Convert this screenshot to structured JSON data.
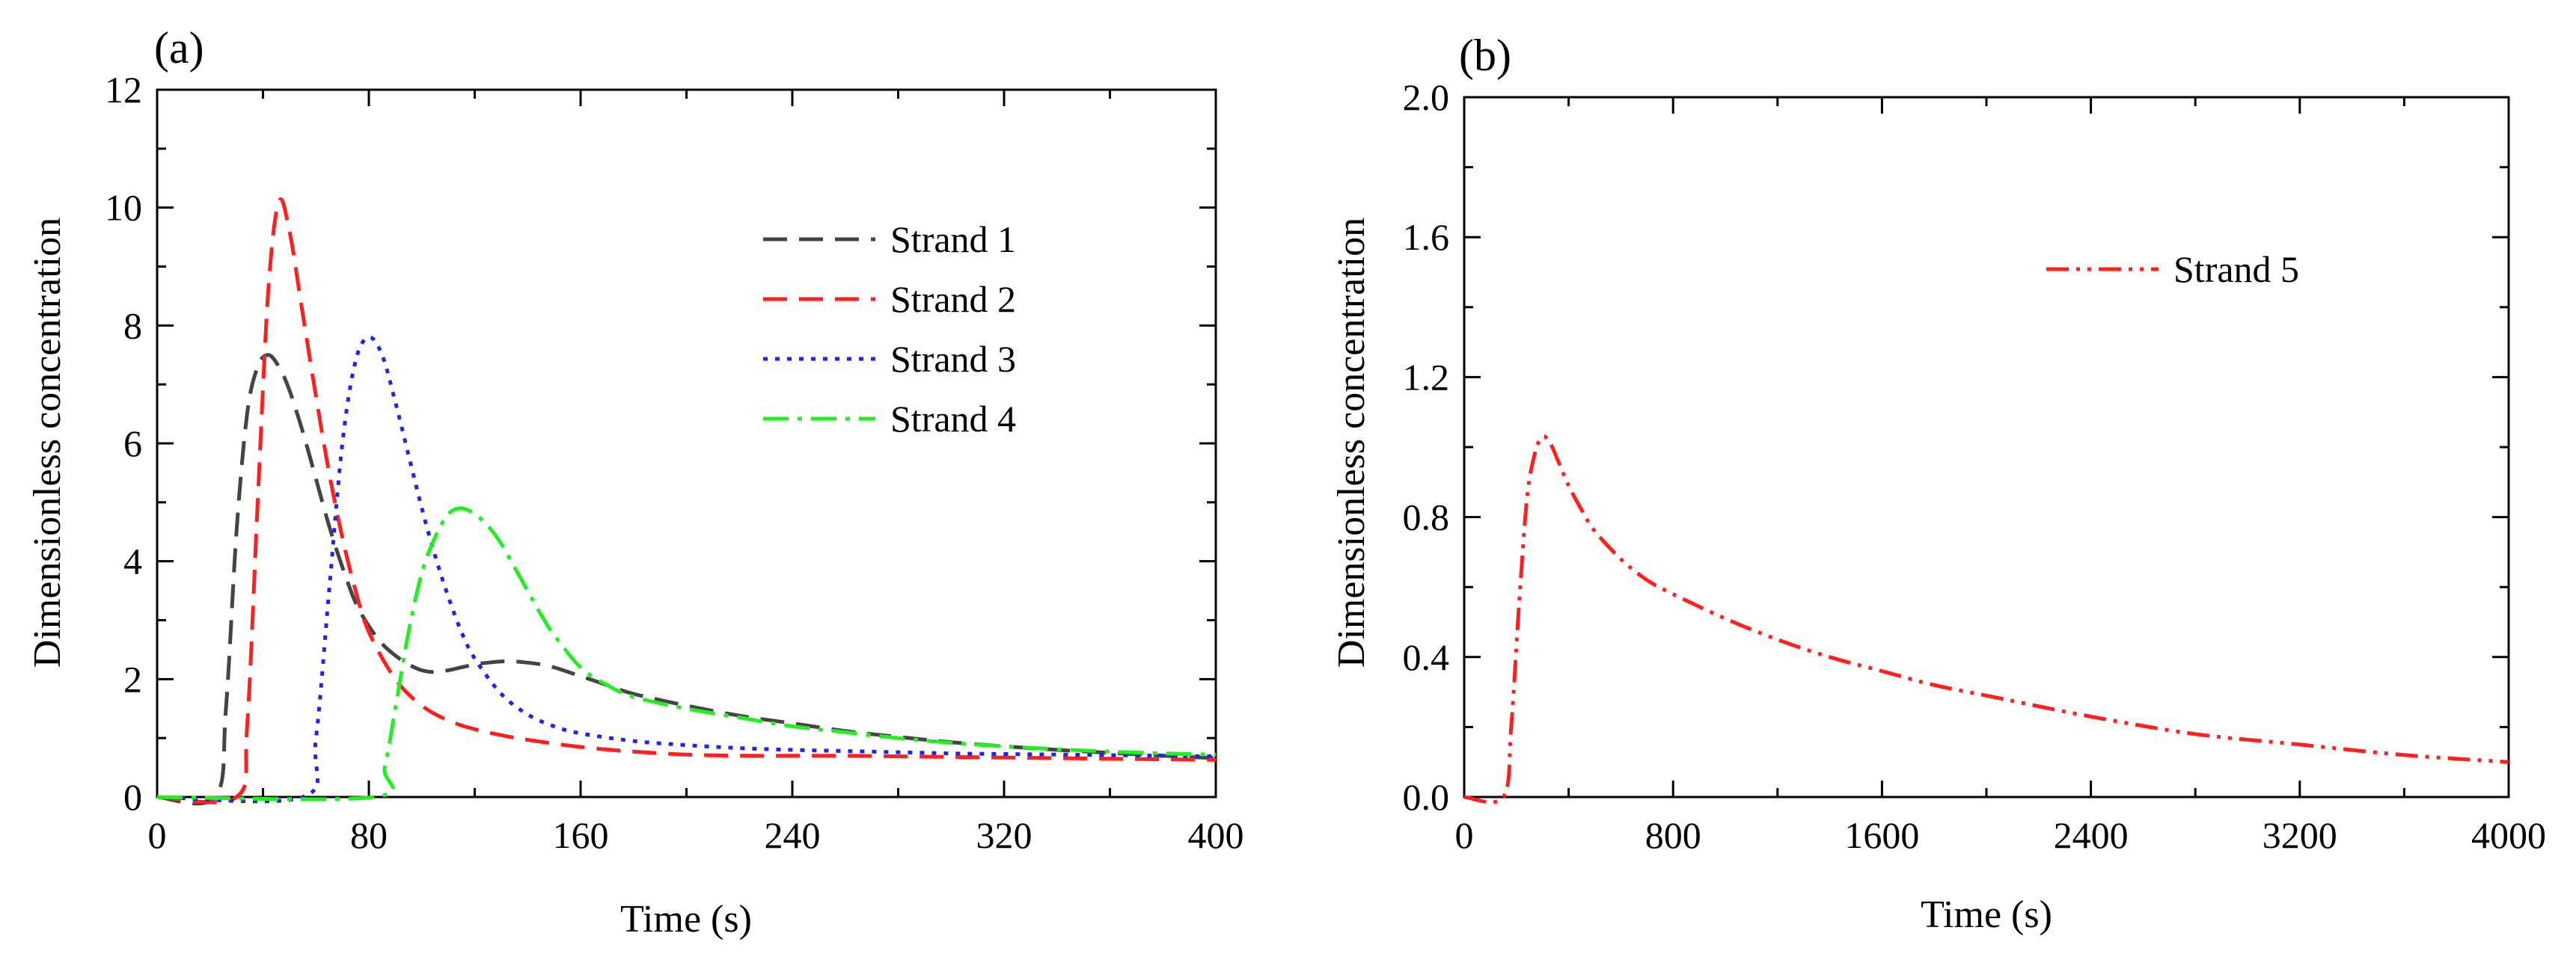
{
  "chart_data": [
    {
      "panel_label": "(a)",
      "type": "line",
      "xlabel": "Time (s)",
      "ylabel": "Dimensionless concentration",
      "xlim": [
        0,
        400
      ],
      "ylim": [
        0,
        12
      ],
      "xticks": [
        0,
        80,
        160,
        240,
        320,
        400
      ],
      "yticks": [
        0,
        2,
        4,
        6,
        8,
        10,
        12
      ],
      "xtick_labels": [
        "0",
        "80",
        "160",
        "240",
        "320",
        "400"
      ],
      "ytick_labels": [
        "0",
        "2",
        "4",
        "6",
        "8",
        "10",
        "12"
      ],
      "legend_position": "top-right",
      "series": [
        {
          "name": "Strand 1",
          "color": "#444444",
          "dash": "dashed",
          "x": [
            0,
            22,
            26,
            30,
            34,
            38,
            42,
            46,
            50,
            55,
            60,
            65,
            70,
            75,
            80,
            85,
            90,
            95,
            100,
            105,
            110,
            115,
            120,
            125,
            130,
            135,
            140,
            145,
            150,
            160,
            170,
            180,
            200,
            220,
            240,
            260,
            280,
            300,
            320,
            340,
            360,
            380,
            400
          ],
          "y": [
            0,
            0,
            1.5,
            4.5,
            6.5,
            7.3,
            7.5,
            7.3,
            6.9,
            6.2,
            5.4,
            4.6,
            3.9,
            3.3,
            2.9,
            2.6,
            2.4,
            2.25,
            2.15,
            2.12,
            2.15,
            2.2,
            2.25,
            2.28,
            2.3,
            2.3,
            2.28,
            2.25,
            2.2,
            2.05,
            1.9,
            1.75,
            1.55,
            1.38,
            1.25,
            1.12,
            1.02,
            0.93,
            0.86,
            0.8,
            0.75,
            0.7,
            0.66
          ]
        },
        {
          "name": "Strand 2",
          "color": "#ff1f1f",
          "dash": "dashed",
          "x": [
            0,
            30,
            34,
            38,
            42,
            46,
            50,
            55,
            60,
            65,
            70,
            75,
            80,
            90,
            100,
            110,
            120,
            130,
            140,
            160,
            180,
            200,
            220,
            240,
            260,
            280,
            300,
            320,
            340,
            360,
            380,
            400
          ],
          "y": [
            0,
            0,
            1.2,
            5.0,
            8.6,
            10.1,
            9.6,
            8.2,
            6.8,
            5.5,
            4.4,
            3.5,
            2.8,
            2.0,
            1.55,
            1.3,
            1.15,
            1.05,
            0.97,
            0.85,
            0.77,
            0.72,
            0.7,
            0.7,
            0.7,
            0.69,
            0.68,
            0.67,
            0.66,
            0.65,
            0.64,
            0.63
          ]
        },
        {
          "name": "Strand 3",
          "color": "#2222ee",
          "dash": "dotted",
          "x": [
            0,
            55,
            60,
            65,
            70,
            75,
            80,
            85,
            90,
            95,
            100,
            105,
            110,
            115,
            120,
            130,
            140,
            150,
            160,
            180,
            200,
            220,
            240,
            260,
            280,
            300,
            320,
            340,
            360,
            380,
            400
          ],
          "y": [
            0,
            0,
            1.0,
            3.5,
            6.0,
            7.4,
            7.8,
            7.5,
            6.7,
            5.8,
            4.9,
            4.1,
            3.4,
            2.8,
            2.35,
            1.75,
            1.4,
            1.2,
            1.08,
            0.95,
            0.88,
            0.83,
            0.8,
            0.78,
            0.76,
            0.74,
            0.73,
            0.72,
            0.71,
            0.7,
            0.69
          ]
        },
        {
          "name": "Strand 4",
          "color": "#22ee22",
          "dash": "dashdot",
          "x": [
            0,
            82,
            86,
            90,
            95,
            100,
            105,
            110,
            115,
            120,
            125,
            130,
            135,
            140,
            145,
            150,
            160,
            170,
            180,
            200,
            220,
            240,
            260,
            280,
            300,
            320,
            340,
            360,
            380,
            400
          ],
          "y": [
            0,
            0,
            0.5,
            1.5,
            2.8,
            3.8,
            4.4,
            4.8,
            4.9,
            4.8,
            4.6,
            4.3,
            3.9,
            3.5,
            3.1,
            2.75,
            2.2,
            1.9,
            1.7,
            1.5,
            1.35,
            1.2,
            1.1,
            1.0,
            0.92,
            0.86,
            0.81,
            0.77,
            0.74,
            0.72
          ]
        }
      ]
    },
    {
      "panel_label": "(b)",
      "type": "line",
      "xlabel": "Time (s)",
      "ylabel": "Dimensionless concentration",
      "xlim": [
        0,
        4000
      ],
      "ylim": [
        0,
        2.0
      ],
      "xticks": [
        0,
        800,
        1600,
        2400,
        3200,
        4000
      ],
      "yticks": [
        0,
        0.4,
        0.8,
        1.2,
        1.6,
        2.0
      ],
      "xtick_labels": [
        "0",
        "800",
        "1600",
        "2400",
        "3200",
        "4000"
      ],
      "ytick_labels": [
        "0.0",
        "0.4",
        "0.8",
        "1.2",
        "1.6",
        "2.0"
      ],
      "legend_position": "top-right",
      "series": [
        {
          "name": "Strand 5",
          "color": "#ff1f1f",
          "dash": "dashdotdot",
          "x": [
            0,
            150,
            180,
            210,
            240,
            270,
            300,
            330,
            360,
            400,
            450,
            500,
            600,
            700,
            800,
            1000,
            1200,
            1400,
            1600,
            1800,
            2000,
            2400,
            2800,
            3200,
            3600,
            4000
          ],
          "y": [
            0,
            0,
            0.2,
            0.55,
            0.85,
            0.98,
            1.03,
            1.01,
            0.96,
            0.89,
            0.82,
            0.76,
            0.68,
            0.62,
            0.58,
            0.51,
            0.45,
            0.4,
            0.36,
            0.32,
            0.29,
            0.23,
            0.18,
            0.15,
            0.12,
            0.1
          ]
        }
      ]
    }
  ]
}
